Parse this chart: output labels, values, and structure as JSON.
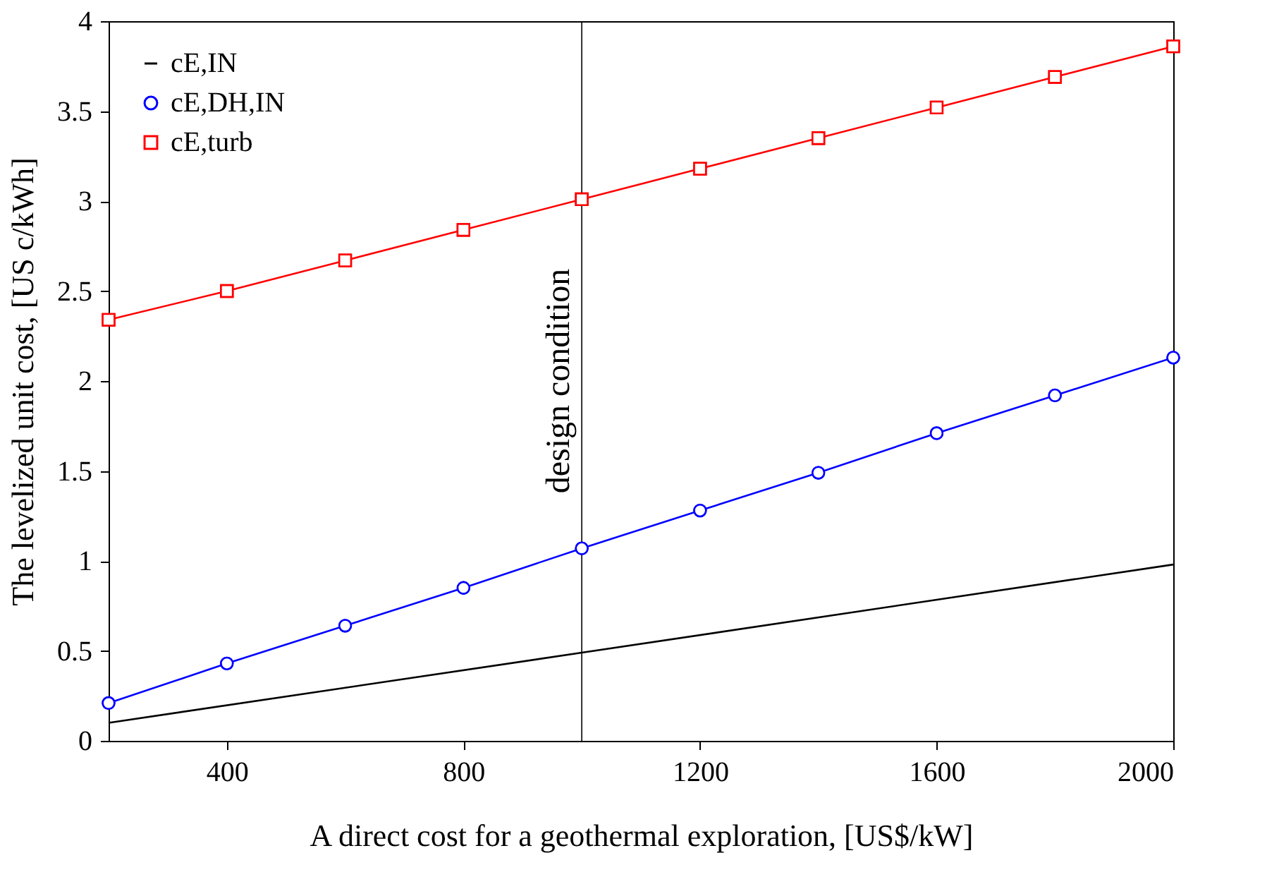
{
  "chart_data": {
    "type": "line",
    "xlabel": "A direct cost for a geothermal exploration, [US$/kW]",
    "ylabel": "The levelized unit cost, [US c/kWh]",
    "xlim": [
      200,
      2000
    ],
    "xticks": [
      400,
      800,
      1200,
      1600,
      2000
    ],
    "ylim": [
      0,
      4
    ],
    "yticks": [
      0,
      0.5,
      1,
      1.5,
      2,
      2.5,
      3,
      3.5,
      4
    ],
    "grid": false,
    "legend": "top left",
    "series": [
      {
        "name": "cE,IN",
        "color": "#000000",
        "marker": "none",
        "x": [
          200,
          1000,
          2000
        ],
        "values": [
          0.1,
          0.49,
          0.98
        ]
      },
      {
        "name": "cE,DH,IN",
        "color": "#0000ff",
        "marker": "circle",
        "x": [
          200,
          400,
          600,
          800,
          1000,
          1200,
          1400,
          1600,
          1800,
          2000
        ],
        "values": [
          0.21,
          0.43,
          0.64,
          0.85,
          1.07,
          1.28,
          1.49,
          1.71,
          1.92,
          2.13
        ]
      },
      {
        "name": "cE,turb",
        "color": "#ff0000",
        "marker": "square",
        "x": [
          200,
          400,
          600,
          800,
          1000,
          1200,
          1400,
          1600,
          1800,
          2000
        ],
        "values": [
          2.34,
          2.5,
          2.67,
          2.84,
          3.01,
          3.18,
          3.35,
          3.52,
          3.69,
          3.86
        ]
      }
    ],
    "ref_lines": [
      {
        "axis": "x",
        "value": 1000,
        "label": "design condition",
        "color": "#000000"
      }
    ]
  }
}
